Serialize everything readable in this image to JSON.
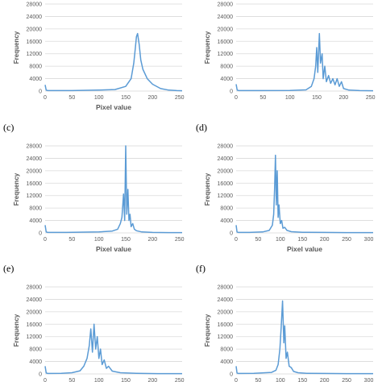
{
  "colors": {
    "series": "#5b9bd5",
    "grid": "#d9d9d9",
    "text": "#595959"
  },
  "chart_data": [
    {
      "type": "line",
      "panel_label": "",
      "xlabel": "Pixel value",
      "ylabel": "Frequency",
      "xlim": [
        0,
        255
      ],
      "ylim": [
        0,
        28000
      ],
      "xticks": [
        0,
        50,
        100,
        150,
        200,
        250
      ],
      "yticks": [
        0,
        4000,
        8000,
        12000,
        16000,
        20000,
        24000,
        28000
      ],
      "grid": true,
      "legend": "none",
      "x": [
        0,
        2,
        5,
        20,
        50,
        100,
        130,
        150,
        160,
        165,
        168,
        170,
        172,
        175,
        178,
        182,
        190,
        200,
        215,
        230,
        245,
        255
      ],
      "y": [
        2000,
        300,
        150,
        150,
        150,
        300,
        500,
        1500,
        4000,
        9000,
        14000,
        17500,
        18500,
        15000,
        10000,
        7000,
        4000,
        2200,
        800,
        300,
        150,
        100
      ]
    },
    {
      "type": "line",
      "panel_label": "",
      "xlabel": "",
      "ylabel": "Frequency",
      "xlim": [
        0,
        255
      ],
      "ylim": [
        0,
        28000
      ],
      "xticks": [
        0,
        50,
        100,
        150,
        200,
        250
      ],
      "yticks": [
        0,
        4000,
        8000,
        12000,
        16000,
        20000,
        24000,
        28000
      ],
      "grid": true,
      "legend": "none",
      "x": [
        0,
        2,
        5,
        40,
        100,
        130,
        140,
        145,
        148,
        150,
        152,
        155,
        157,
        160,
        162,
        165,
        168,
        172,
        176,
        180,
        184,
        188,
        192,
        196,
        200,
        210,
        230,
        255
      ],
      "y": [
        2200,
        300,
        150,
        150,
        200,
        400,
        1500,
        4000,
        8000,
        14000,
        6000,
        18500,
        9000,
        12000,
        4000,
        8000,
        3000,
        5000,
        2500,
        4000,
        2000,
        4000,
        1500,
        3000,
        800,
        300,
        150,
        100
      ]
    },
    {
      "type": "line",
      "panel_label": "(c)",
      "xlabel": "Pixel value",
      "ylabel": "Frequency",
      "xlim": [
        0,
        255
      ],
      "ylim": [
        0,
        28000
      ],
      "xticks": [
        0,
        50,
        100,
        150,
        200,
        250
      ],
      "yticks": [
        0,
        4000,
        8000,
        12000,
        16000,
        20000,
        24000,
        28000
      ],
      "grid": true,
      "legend": "none",
      "x": [
        0,
        2,
        5,
        40,
        100,
        125,
        135,
        140,
        143,
        146,
        148,
        150,
        152,
        154,
        156,
        158,
        160,
        163,
        166,
        170,
        180,
        200,
        230,
        255
      ],
      "y": [
        2500,
        300,
        150,
        150,
        300,
        600,
        1200,
        3000,
        5000,
        12500,
        4000,
        28000,
        6000,
        14000,
        4000,
        6000,
        2000,
        3000,
        1200,
        700,
        300,
        150,
        100,
        100
      ]
    },
    {
      "type": "line",
      "panel_label": "(d)",
      "xlabel": "Pixel value",
      "ylabel": "Frequency",
      "xlim": [
        0,
        310
      ],
      "ylim": [
        0,
        28000
      ],
      "xticks": [
        0,
        50,
        100,
        150,
        200,
        250,
        300
      ],
      "yticks": [
        0,
        4000,
        8000,
        12000,
        16000,
        20000,
        24000,
        28000
      ],
      "grid": true,
      "legend": "none",
      "x": [
        0,
        2,
        5,
        30,
        60,
        75,
        82,
        85,
        87,
        89,
        91,
        93,
        95,
        97,
        100,
        103,
        106,
        110,
        115,
        125,
        150,
        200,
        250,
        310
      ],
      "y": [
        2500,
        300,
        150,
        150,
        300,
        800,
        2500,
        6000,
        14000,
        25000,
        9000,
        20000,
        5000,
        9000,
        3000,
        4000,
        1500,
        1800,
        800,
        400,
        200,
        150,
        100,
        100
      ]
    },
    {
      "type": "line",
      "panel_label": "(e)",
      "xlabel": "",
      "ylabel": "Frequency",
      "xlim": [
        0,
        255
      ],
      "ylim": [
        0,
        28000
      ],
      "xticks": [
        0,
        50,
        100,
        150,
        200,
        250
      ],
      "yticks": [
        0,
        4000,
        8000,
        12000,
        16000,
        20000,
        24000,
        28000
      ],
      "grid": true,
      "legend": "none",
      "x": [
        0,
        2,
        5,
        30,
        50,
        65,
        72,
        78,
        82,
        85,
        88,
        91,
        94,
        97,
        100,
        103,
        106,
        110,
        114,
        118,
        125,
        140,
        170,
        210,
        255
      ],
      "y": [
        2500,
        300,
        150,
        200,
        400,
        1000,
        2500,
        5000,
        9000,
        14500,
        7000,
        16000,
        8000,
        12000,
        5000,
        8000,
        3000,
        4500,
        1800,
        2500,
        900,
        400,
        200,
        100,
        100
      ]
    },
    {
      "type": "line",
      "panel_label": "(f)",
      "xlabel": "",
      "ylabel": "Frequency",
      "xlim": [
        0,
        310
      ],
      "ylim": [
        0,
        28000
      ],
      "xticks": [
        0,
        50,
        100,
        150,
        200,
        250,
        300
      ],
      "yticks": [
        0,
        4000,
        8000,
        12000,
        16000,
        20000,
        24000,
        28000
      ],
      "grid": true,
      "legend": "none",
      "x": [
        0,
        2,
        5,
        40,
        80,
        90,
        95,
        99,
        102,
        105,
        108,
        110,
        113,
        116,
        120,
        125,
        130,
        140,
        160,
        200,
        250,
        310
      ],
      "y": [
        2500,
        300,
        150,
        200,
        500,
        1200,
        3000,
        8000,
        15000,
        23500,
        10000,
        15500,
        5000,
        7000,
        2500,
        2000,
        800,
        400,
        200,
        150,
        100,
        100
      ]
    }
  ]
}
